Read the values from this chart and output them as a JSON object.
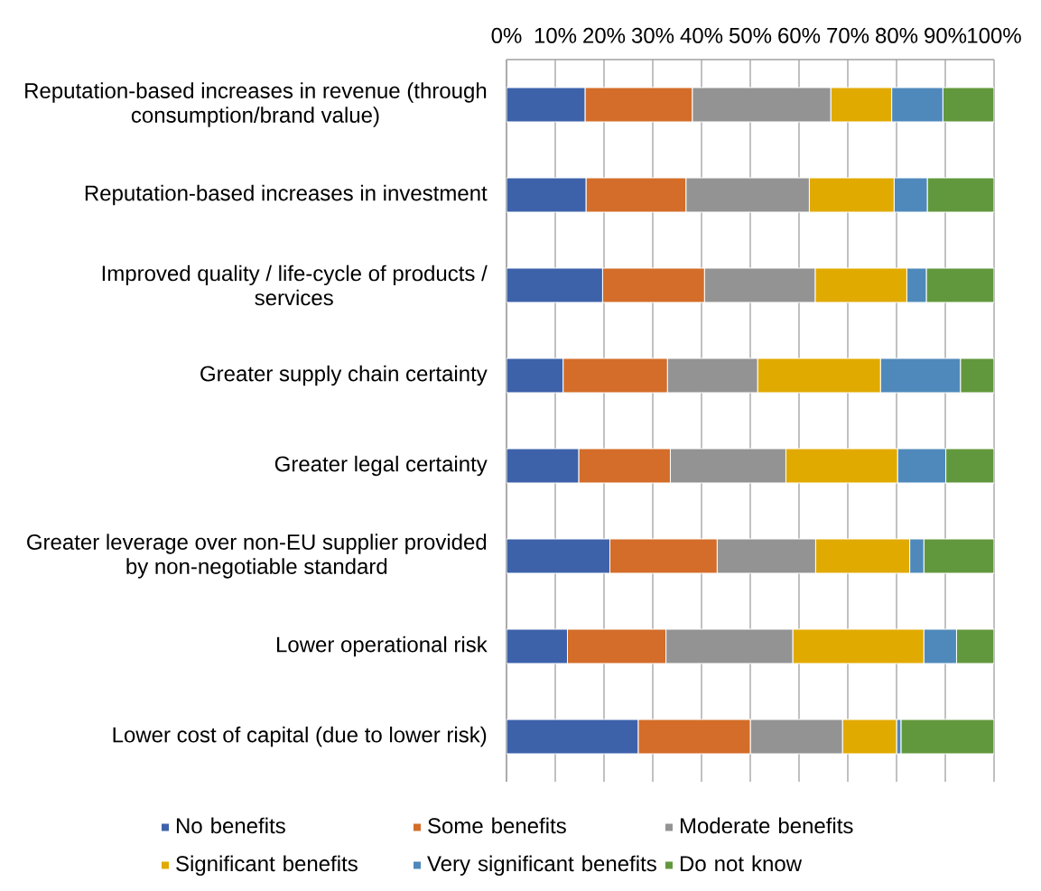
{
  "chart_data": {
    "type": "bar",
    "orientation": "horizontal",
    "stacked": true,
    "categories": [
      "Reputation-based increases in revenue (through consumption/brand value)",
      "Reputation-based increases in investment",
      "Improved quality / life-cycle of products / services",
      "Greater supply chain certainty",
      "Greater legal certainty",
      "Greater leverage over non-EU supplier provided by non-negotiable standard",
      "Lower operational risk",
      "Lower cost of capital (due to lower risk)"
    ],
    "series": [
      {
        "name": "No benefits",
        "color": "#3d62aa",
        "values": [
          16.1,
          16.3,
          19.7,
          11.6,
          14.8,
          21.2,
          12.5,
          27.0
        ]
      },
      {
        "name": "Some benefits",
        "color": "#d36d29",
        "values": [
          22.0,
          20.5,
          20.9,
          21.4,
          18.8,
          22.0,
          20.2,
          23.0
        ]
      },
      {
        "name": "Moderate benefits",
        "color": "#939393",
        "values": [
          28.4,
          25.3,
          22.7,
          18.5,
          23.7,
          20.2,
          26.0,
          18.9
        ]
      },
      {
        "name": "Significant benefits",
        "color": "#e1aa00",
        "values": [
          12.5,
          17.4,
          18.8,
          25.2,
          22.9,
          19.3,
          26.9,
          11.1
        ]
      },
      {
        "name": "Very significant benefits",
        "color": "#4f89bb",
        "values": [
          10.5,
          6.8,
          4.0,
          16.4,
          9.9,
          2.9,
          6.7,
          0.9
        ]
      },
      {
        "name": "Do not know",
        "color": "#62983d",
        "values": [
          10.5,
          13.7,
          13.9,
          6.9,
          9.9,
          14.4,
          7.7,
          19.1
        ]
      }
    ],
    "xlim": [
      0,
      100
    ],
    "xticks": [
      {
        "value": 0,
        "label": "0%"
      },
      {
        "value": 10,
        "label": "10%"
      },
      {
        "value": 20,
        "label": "20%"
      },
      {
        "value": 30,
        "label": "30%"
      },
      {
        "value": 40,
        "label": "40%"
      },
      {
        "value": 50,
        "label": "50%"
      },
      {
        "value": 60,
        "label": "60%"
      },
      {
        "value": 70,
        "label": "70%"
      },
      {
        "value": 80,
        "label": "80%"
      },
      {
        "value": 90,
        "label": "90%"
      },
      {
        "value": 100,
        "label": "100%"
      }
    ],
    "grid": "x",
    "legend": "bottom"
  }
}
